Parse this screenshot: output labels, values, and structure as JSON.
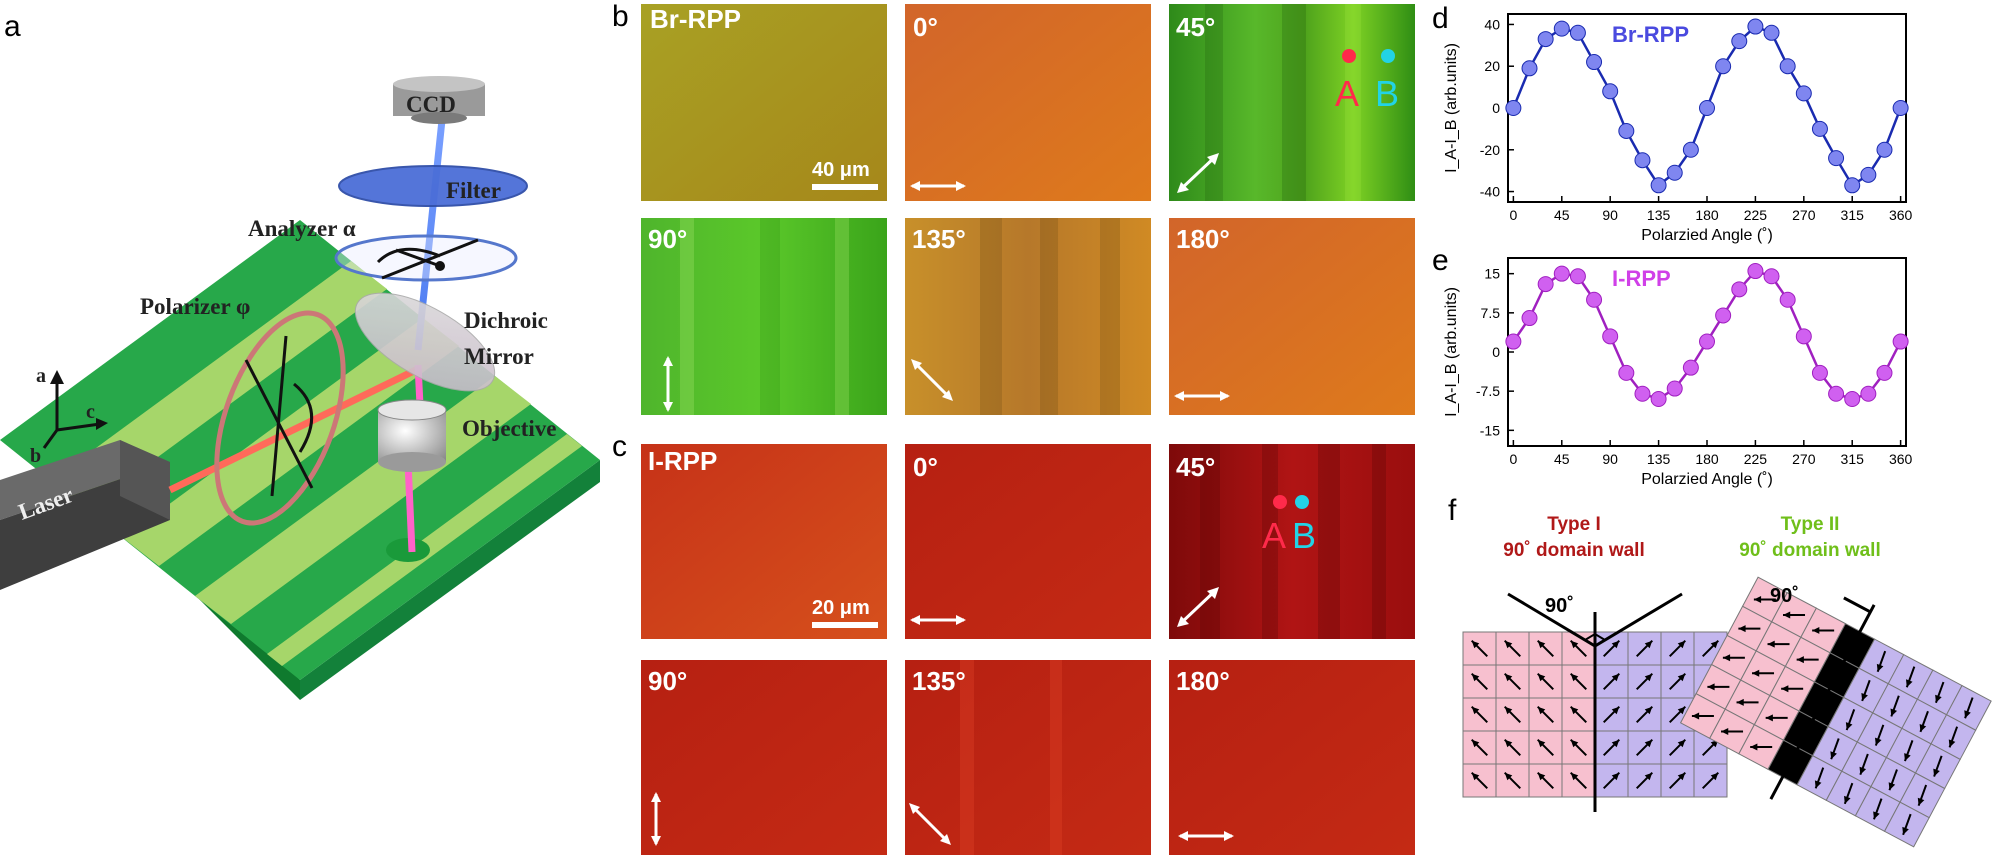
{
  "panel_letters": [
    "a",
    "b",
    "c",
    "d",
    "e",
    "f"
  ],
  "setup": {
    "ccd": "CCD",
    "filter": "Filter",
    "analyzer": "Analyzer α",
    "dichroic_line1": "Dichroic",
    "dichroic_line2": "Mirror",
    "polarizer": "Polarizer φ",
    "objective": "Objective",
    "laser": "Laser",
    "axis_a": "a",
    "axis_b": "b",
    "axis_c": "c"
  },
  "micrographs": {
    "br_label": "Br-RPP",
    "i_label": "I-RPP",
    "angles": [
      "0°",
      "45°",
      "90°",
      "135°",
      "180°"
    ],
    "br_scalebar": "40 μm",
    "i_scalebar": "20 μm",
    "point_a": "A",
    "point_b": "B",
    "color_a": "#ff2a4a",
    "color_b": "#22d3e6"
  },
  "chart_data": [
    {
      "type": "line",
      "panel": "d",
      "annotation": "Br-RPP",
      "xlabel": "Polarzied Angle (˚)",
      "ylabel": "I_A-I_B (arb.units)",
      "xticks": [
        0,
        45,
        90,
        135,
        180,
        225,
        270,
        315,
        360
      ],
      "yticks": [
        -40,
        -20,
        0,
        20,
        40
      ],
      "xlim": [
        -5,
        365
      ],
      "ylim": [
        -45,
        45
      ],
      "x": [
        0,
        15,
        30,
        45,
        60,
        75,
        90,
        105,
        120,
        135,
        150,
        165,
        180,
        195,
        210,
        225,
        240,
        255,
        270,
        285,
        300,
        315,
        330,
        345,
        360
      ],
      "values": [
        0,
        19,
        33,
        38,
        36,
        22,
        8,
        -11,
        -25,
        -37,
        -31,
        -20,
        0,
        20,
        32,
        39,
        36,
        20,
        7,
        -10,
        -24,
        -37,
        -32,
        -20,
        0
      ],
      "color": "#1a2bb0",
      "marker_color": "#7f86f0",
      "annotation_color": "#4a4adf"
    },
    {
      "type": "line",
      "panel": "e",
      "annotation": "I-RPP",
      "xlabel": "Polarzied Angle (˚)",
      "ylabel": "I_A-I_B (arb.units)",
      "xticks": [
        0,
        45,
        90,
        135,
        180,
        225,
        270,
        315,
        360
      ],
      "yticks": [
        -15,
        -7.5,
        0,
        7.5,
        15
      ],
      "xlim": [
        -5,
        365
      ],
      "ylim": [
        -18,
        18
      ],
      "x": [
        0,
        15,
        30,
        45,
        60,
        75,
        90,
        105,
        120,
        135,
        150,
        165,
        180,
        195,
        210,
        225,
        240,
        255,
        270,
        285,
        300,
        315,
        330,
        345,
        360
      ],
      "values": [
        2,
        6.5,
        13,
        15,
        14.5,
        10,
        3,
        -4,
        -8,
        -9,
        -7,
        -3,
        2,
        7,
        12,
        15.5,
        14.5,
        10,
        3,
        -4,
        -8,
        -9,
        -8,
        -4,
        2
      ],
      "color": "#a020c0",
      "marker_color": "#d060f0",
      "annotation_color": "#d040e8"
    }
  ],
  "domain_walls": {
    "type1_title": "Type I",
    "type2_title": "Type II",
    "subtitle": "90˚ domain wall",
    "angle_label": "90˚",
    "type1_color": "#b01818",
    "type2_color": "#6fbf1a",
    "pink": "#f7c0cf",
    "lavender": "#c3b6ee"
  }
}
